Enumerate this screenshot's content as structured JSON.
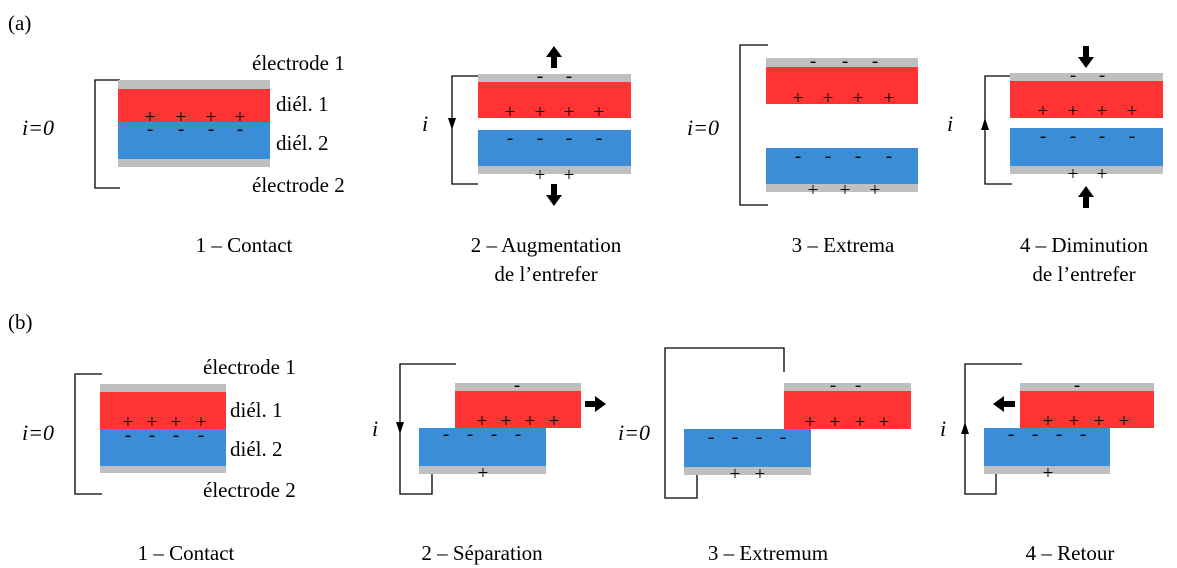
{
  "panel_a": {
    "tag": "(a)",
    "labels": {
      "electrode1": "électrode 1",
      "diel1": "diél. 1",
      "diel2": "diél. 2",
      "electrode2": "électrode 2"
    },
    "currents": {
      "s1": "i=0",
      "s2": "i",
      "s3": "i=0",
      "s4": "i"
    },
    "captions": {
      "s1": [
        "1 – Contact"
      ],
      "s2": [
        "2 – Augmentation",
        "de l’entrefer"
      ],
      "s3": [
        "3 – Extrema"
      ],
      "s4": [
        "4 – Diminution",
        "de l’entrefer"
      ]
    }
  },
  "panel_b": {
    "tag": "(b)",
    "labels": {
      "electrode1": "électrode 1",
      "diel1": "diél. 1",
      "diel2": "diél. 2",
      "electrode2": "électrode 2"
    },
    "currents": {
      "s1": "i=0",
      "s2": "i",
      "s3": "i=0",
      "s4": "i"
    },
    "captions": {
      "s1": "1 – Contact",
      "s2": "2 – Séparation",
      "s3": "3 – Extremum",
      "s4": "4 – Retour"
    }
  },
  "symbols": {
    "plus": "+",
    "minus": "-"
  },
  "colors": {
    "dielectric1": "#ff3333",
    "dielectric2": "#3a8dd6",
    "electrode": "#bfbfbf"
  }
}
